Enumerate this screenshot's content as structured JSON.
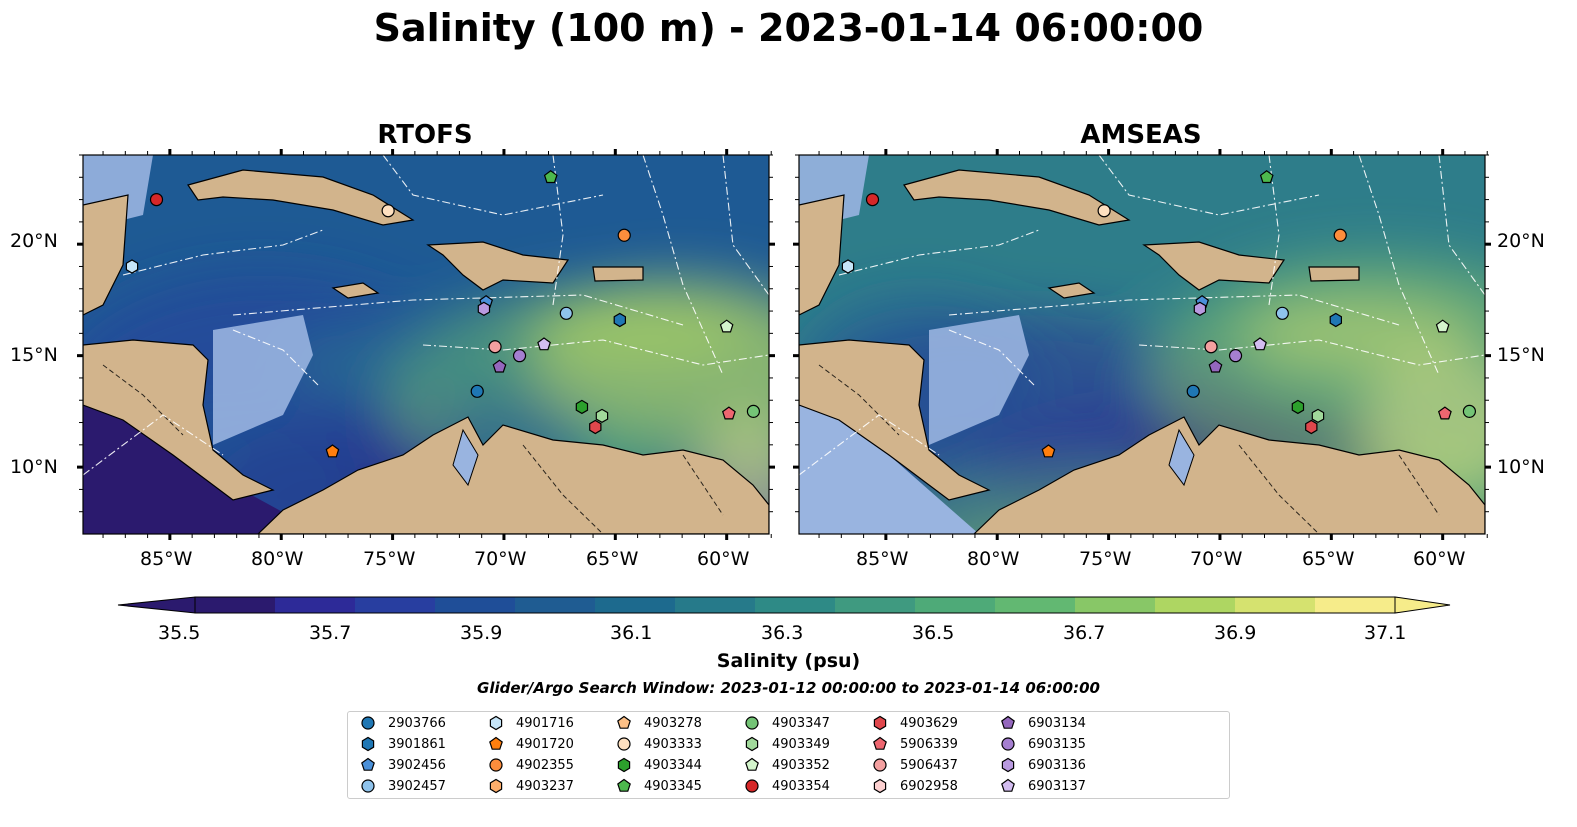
{
  "title": "Salinity (100 m) - 2023-01-14 06:00:00",
  "panels": [
    {
      "title": "RTOFS",
      "model": "rtofs"
    },
    {
      "title": "AMSEAS",
      "model": "amseas"
    }
  ],
  "lat_ticks": [
    "20°N",
    "15°N",
    "10°N"
  ],
  "lon_ticks": [
    "85°W",
    "80°W",
    "75°W",
    "70°W",
    "65°W",
    "60°W"
  ],
  "colorbar": {
    "label": "Salinity (psu)",
    "min": 35.5,
    "max": 37.1,
    "ticks": [
      "35.5",
      "35.7",
      "35.9",
      "36.1",
      "36.3",
      "36.5",
      "36.7",
      "36.9",
      "37.1"
    ],
    "colors": [
      "#2b1a6e",
      "#2d2a98",
      "#283ea0",
      "#1f4e98",
      "#1f5c92",
      "#1d6a8e",
      "#267a8a",
      "#2e8a86",
      "#3f9a80",
      "#4eaa78",
      "#62b872",
      "#88c767",
      "#aed662",
      "#d5e26f",
      "#f6ec8a"
    ]
  },
  "search_window": "Glider/Argo Search Window: 2023-01-12 00:00:00 to 2023-01-14 06:00:00",
  "map_colors": {
    "land": "#d2b48c",
    "shallow": "#99b4e0",
    "coast": "#000000"
  },
  "legend": [
    {
      "id": "2903766",
      "marker": "circle",
      "color": "#1f77b4"
    },
    {
      "id": "3901861",
      "marker": "hexagon",
      "color": "#1f77b4"
    },
    {
      "id": "3902456",
      "marker": "pentagon",
      "color": "#4a90d9"
    },
    {
      "id": "3902457",
      "marker": "circle",
      "color": "#8fc3ec"
    },
    {
      "id": "4901716",
      "marker": "hexagon",
      "color": "#c6e5f8"
    },
    {
      "id": "4901720",
      "marker": "pentagon",
      "color": "#ff7f0e"
    },
    {
      "id": "4902355",
      "marker": "circle",
      "color": "#fd8d3c"
    },
    {
      "id": "4903237",
      "marker": "hexagon",
      "color": "#fdae6b"
    },
    {
      "id": "4903278",
      "marker": "pentagon",
      "color": "#fdc086"
    },
    {
      "id": "4903333",
      "marker": "circle",
      "color": "#fee0c0"
    },
    {
      "id": "4903344",
      "marker": "hexagon",
      "color": "#2ca02c"
    },
    {
      "id": "4903345",
      "marker": "pentagon",
      "color": "#4db84d"
    },
    {
      "id": "4903347",
      "marker": "circle",
      "color": "#74c476"
    },
    {
      "id": "4903349",
      "marker": "hexagon",
      "color": "#a1d99b"
    },
    {
      "id": "4903352",
      "marker": "pentagon",
      "color": "#d4f5cc"
    },
    {
      "id": "4903354",
      "marker": "circle",
      "color": "#d62728"
    },
    {
      "id": "4903629",
      "marker": "hexagon",
      "color": "#e0474c"
    },
    {
      "id": "5906339",
      "marker": "pentagon",
      "color": "#ee6670"
    },
    {
      "id": "5906437",
      "marker": "circle",
      "color": "#f4a0a0"
    },
    {
      "id": "6902958",
      "marker": "hexagon",
      "color": "#fcd0d0"
    },
    {
      "id": "6903134",
      "marker": "pentagon",
      "color": "#9467bd"
    },
    {
      "id": "6903135",
      "marker": "circle",
      "color": "#a57fd0"
    },
    {
      "id": "6903136",
      "marker": "hexagon",
      "color": "#b99ae0"
    },
    {
      "id": "6903137",
      "marker": "pentagon",
      "color": "#d3bdf0"
    }
  ],
  "floats": [
    {
      "id": "4903354",
      "lon": -85.6,
      "lat": 22.0
    },
    {
      "id": "4903333",
      "lon": -75.2,
      "lat": 21.5
    },
    {
      "id": "4903345",
      "lon": -67.9,
      "lat": 23.0
    },
    {
      "id": "4902355",
      "lon": -64.6,
      "lat": 20.4
    },
    {
      "id": "4901716",
      "lon": -86.7,
      "lat": 19.0
    },
    {
      "id": "3902456",
      "lon": -70.8,
      "lat": 17.4
    },
    {
      "id": "6903136",
      "lon": -70.9,
      "lat": 17.1
    },
    {
      "id": "3902457",
      "lon": -67.2,
      "lat": 16.9
    },
    {
      "id": "3901861",
      "lon": -64.8,
      "lat": 16.6
    },
    {
      "id": "4903352",
      "lon": -60.0,
      "lat": 16.3
    },
    {
      "id": "6903137",
      "lon": -68.2,
      "lat": 15.5
    },
    {
      "id": "5906437",
      "lon": -70.4,
      "lat": 15.4
    },
    {
      "id": "6903135",
      "lon": -69.3,
      "lat": 15.0
    },
    {
      "id": "6903134",
      "lon": -70.2,
      "lat": 14.5
    },
    {
      "id": "2903766",
      "lon": -71.2,
      "lat": 13.4
    },
    {
      "id": "4903344",
      "lon": -66.5,
      "lat": 12.7
    },
    {
      "id": "4903349",
      "lon": -65.6,
      "lat": 12.3
    },
    {
      "id": "4903629",
      "lon": -65.9,
      "lat": 11.8
    },
    {
      "id": "5906339",
      "lon": -59.9,
      "lat": 12.4
    },
    {
      "id": "4903347",
      "lon": -58.8,
      "lat": 12.5
    },
    {
      "id": "4901720",
      "lon": -77.7,
      "lat": 10.7
    }
  ]
}
